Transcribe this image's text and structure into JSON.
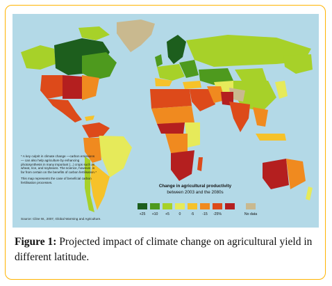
{
  "legend": {
    "title": "Change in agricultural productivity",
    "subtitle": "between 2003 and the 2080s",
    "items": [
      {
        "label": "+25",
        "color": "#1d5e1d"
      },
      {
        "label": "+10",
        "color": "#4e9a1e"
      },
      {
        "label": "+5",
        "color": "#a7d129"
      },
      {
        "label": "0",
        "color": "#e6ea5a"
      },
      {
        "label": "-5",
        "color": "#f6c22a"
      },
      {
        "label": "-15",
        "color": "#f08a1f"
      },
      {
        "label": "-25%",
        "color": "#dd4a1a"
      },
      {
        "label": "",
        "color": "#b41f1f"
      },
      {
        "label": "No data",
        "color": "#c9b98f"
      }
    ]
  },
  "note": {
    "paragraph1": "* A key culprit in climate change —carbon emissions — can also help agriculture by enhancing photosynthesis in many important (...) crops such as wheat, rice, and soybeans. The science, however, is far from certain on the benefits of carbon fertilisation.*",
    "paragraph2": "This map represents the case of beneficial carbon fertilisation processes."
  },
  "source": "Source: Cline W., 2007, Global Warming and Agriculture.",
  "caption": {
    "label": "Figure 1:",
    "text": " Projected impact of climate change on agricultural yield in different latitude."
  },
  "colors": {
    "ocean": "#b3d9e7",
    "frame": "#ffb300"
  }
}
